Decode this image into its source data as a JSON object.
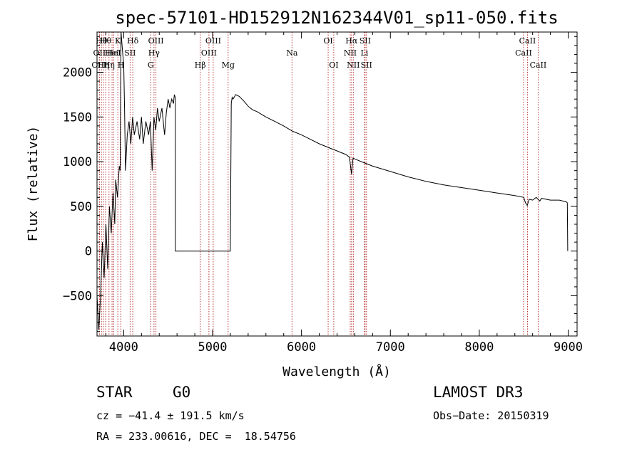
{
  "chart_data": {
    "type": "line",
    "title": "spec-57101-HD152912N162344V01_sp11-050.fits",
    "xlabel": "Wavelength (Å)",
    "ylabel": "Flux (relative)",
    "xlim": [
      3700,
      9100
    ],
    "ylim": [
      -950,
      2450
    ],
    "x_ticks": [
      4000,
      5000,
      6000,
      7000,
      8000,
      9000
    ],
    "y_ticks": [
      -500,
      0,
      500,
      1000,
      1500,
      2000
    ],
    "x_tick_labels": [
      "4000",
      "5000",
      "6000",
      "7000",
      "8000",
      "9000"
    ],
    "y_tick_labels": [
      "−500",
      "0",
      "500",
      "1000",
      "1500",
      "2000"
    ],
    "series": [
      {
        "name": "spectrum",
        "x": [
          3700,
          3720,
          3740,
          3760,
          3780,
          3800,
          3820,
          3840,
          3860,
          3880,
          3900,
          3910,
          3930,
          3950,
          3960,
          3970,
          3990,
          4000,
          4010,
          4020,
          4040,
          4060,
          4080,
          4100,
          4120,
          4150,
          4180,
          4200,
          4220,
          4250,
          4280,
          4300,
          4320,
          4340,
          4360,
          4380,
          4400,
          4430,
          4460,
          4480,
          4500,
          4520,
          4540,
          4560,
          4570,
          4580,
          4581,
          4600,
          5000,
          5200,
          5210,
          5220,
          5230,
          5260,
          5300,
          5350,
          5400,
          5450,
          5500,
          5600,
          5700,
          5800,
          5900,
          6000,
          6100,
          6200,
          6300,
          6400,
          6500,
          6540,
          6563,
          6580,
          6600,
          6700,
          6800,
          7000,
          7200,
          7400,
          7600,
          7800,
          8000,
          8200,
          8400,
          8500,
          8520,
          8540,
          8560,
          8600,
          8640,
          8680,
          8700,
          8800,
          8900,
          8980,
          8990,
          8995
        ],
        "y": [
          -500,
          -880,
          -500,
          100,
          -300,
          300,
          -200,
          500,
          200,
          650,
          300,
          800,
          600,
          950,
          900,
          2450,
          2200,
          2100,
          1600,
          900,
          1300,
          1450,
          1200,
          1500,
          1300,
          1450,
          1250,
          1500,
          1200,
          1450,
          1300,
          1450,
          900,
          1500,
          1350,
          1600,
          1450,
          1600,
          1300,
          1550,
          1700,
          1600,
          1700,
          1650,
          1750,
          1720,
          0,
          0,
          0,
          0,
          1650,
          1720,
          1700,
          1750,
          1730,
          1680,
          1620,
          1580,
          1560,
          1500,
          1450,
          1400,
          1340,
          1300,
          1250,
          1200,
          1160,
          1120,
          1080,
          1050,
          860,
          1040,
          1030,
          990,
          950,
          890,
          830,
          780,
          740,
          710,
          680,
          650,
          620,
          600,
          540,
          510,
          580,
          570,
          600,
          560,
          590,
          570,
          570,
          550,
          540,
          0
        ]
      }
    ],
    "lines": [
      {
        "w": 3727,
        "label": "OII",
        "row": 2
      },
      {
        "w": 3727,
        "label": "OIII",
        "row": 3
      },
      {
        "w": 3750,
        "label": "Hθ",
        "row": 1
      },
      {
        "w": 3771,
        "label": "Hη",
        "row": 3
      },
      {
        "w": 3797,
        "label": "Hθ",
        "row": 1
      },
      {
        "w": 3835,
        "label": "Hη",
        "row": 3
      },
      {
        "w": 3869,
        "label": "HeI",
        "row": 2
      },
      {
        "w": 3889,
        "label": "HeI",
        "row": 2
      },
      {
        "w": 3934,
        "label": "K",
        "row": 1
      },
      {
        "w": 3969,
        "label": "H",
        "row": 3
      },
      {
        "w": 4072,
        "label": "SII",
        "row": 2
      },
      {
        "w": 4102,
        "label": "Hδ",
        "row": 1
      },
      {
        "w": 4304,
        "label": "G",
        "row": 3
      },
      {
        "w": 4341,
        "label": "Hγ",
        "row": 2
      },
      {
        "w": 4363,
        "label": "OIII",
        "row": 1
      },
      {
        "w": 4861,
        "label": "Hβ",
        "row": 3
      },
      {
        "w": 4959,
        "label": "OIII",
        "row": 2
      },
      {
        "w": 5007,
        "label": "OIII",
        "row": 1
      },
      {
        "w": 5175,
        "label": "Mg",
        "row": 3
      },
      {
        "w": 5893,
        "label": "Na",
        "row": 2
      },
      {
        "w": 6300,
        "label": "OI",
        "row": 1
      },
      {
        "w": 6363,
        "label": "OI",
        "row": 3
      },
      {
        "w": 6548,
        "label": "NII",
        "row": 2
      },
      {
        "w": 6563,
        "label": "Hα",
        "row": 1
      },
      {
        "w": 6583,
        "label": "NII",
        "row": 3
      },
      {
        "w": 6708,
        "label": "Li",
        "row": 2
      },
      {
        "w": 6716,
        "label": "SII",
        "row": 1
      },
      {
        "w": 6731,
        "label": "SII",
        "row": 3
      },
      {
        "w": 8498,
        "label": "CaII",
        "row": 2
      },
      {
        "w": 8542,
        "label": "CaII",
        "row": 1
      },
      {
        "w": 8662,
        "label": "CaII",
        "row": 3
      }
    ]
  },
  "info": {
    "object_class": "STAR",
    "subclass": "G0",
    "survey": "LAMOST DR3",
    "redshift_text": "cz = −41.4 ± 191.5 km/s",
    "obs_date": "Obs−Date: 20150319",
    "coords": "RA = 233.00616, DEC =  18.54756"
  },
  "colors": {
    "line_marker": "#b22222",
    "spectrum": "#000000",
    "text": "#000000"
  }
}
